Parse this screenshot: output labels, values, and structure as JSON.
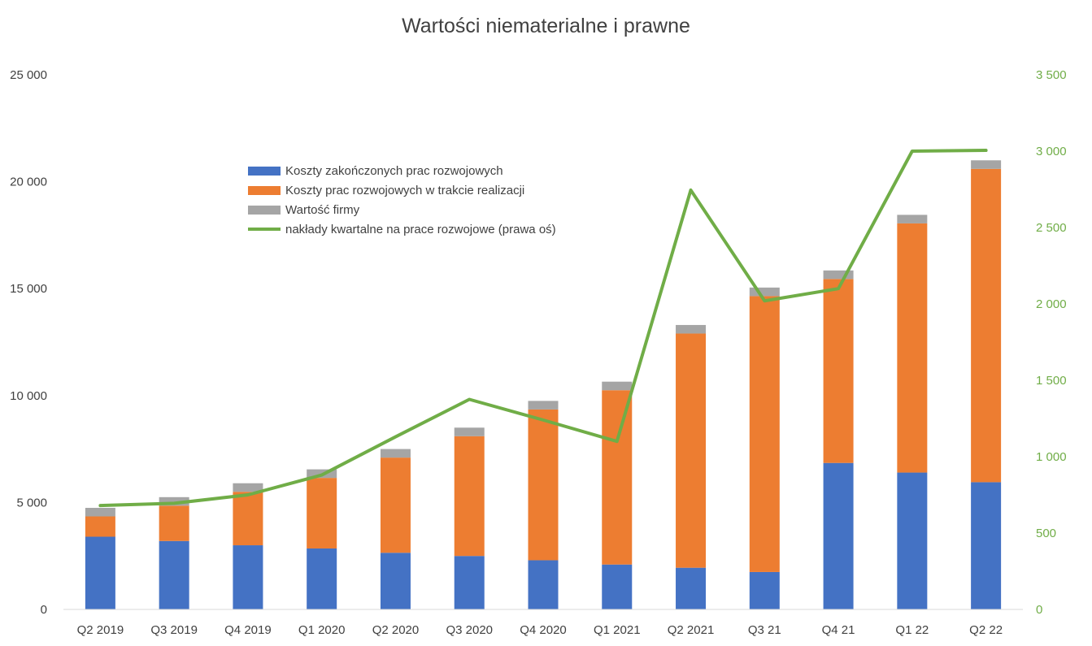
{
  "chart_data": {
    "type": "bar",
    "stacked": true,
    "title": "Wartości niematerialne i prawne",
    "categories": [
      "Q2 2019",
      "Q3 2019",
      "Q4 2019",
      "Q1 2020",
      "Q2 2020",
      "Q3 2020",
      "Q4 2020",
      "Q1 2021",
      "Q2 2021",
      "Q3 21",
      "Q4 21",
      "Q1 22",
      "Q2 22"
    ],
    "ylim": [
      0,
      25000
    ],
    "yticks": [
      "0",
      "5 000",
      "10 000",
      "15 000",
      "20 000",
      "25 000"
    ],
    "y2lim": [
      0,
      3500
    ],
    "y2ticks": [
      "0",
      "500",
      "1 000",
      "1 500",
      "2 000",
      "2 500",
      "3 000",
      "3 500"
    ],
    "series": [
      {
        "name": "Koszty zakończonych prac rozwojowych",
        "type": "bar",
        "color": "#4472C4",
        "values": [
          3400,
          3200,
          3000,
          2850,
          2650,
          2500,
          2300,
          2100,
          1950,
          1750,
          6850,
          6400,
          5950
        ]
      },
      {
        "name": "Koszty prac rozwojowych w trakcie realizacji",
        "type": "bar",
        "color": "#ED7D31",
        "values": [
          950,
          1650,
          2500,
          3300,
          4450,
          5600,
          7050,
          8150,
          10950,
          12900,
          8600,
          11650,
          14650
        ]
      },
      {
        "name": "Wartość firmy",
        "type": "bar",
        "color": "#A5A5A5",
        "values": [
          400,
          400,
          400,
          400,
          400,
          400,
          400,
          400,
          400,
          400,
          400,
          400,
          400
        ]
      },
      {
        "name": "nakłady kwartalne na prace rozwojowe (prawa oś)",
        "type": "line",
        "axis": "right",
        "color": "#70AD47",
        "values": [
          680,
          695,
          750,
          880,
          1130,
          1375,
          1240,
          1100,
          2745,
          2020,
          2100,
          3000,
          3005
        ]
      }
    ],
    "legend_position": "upper-center",
    "grid": false
  }
}
